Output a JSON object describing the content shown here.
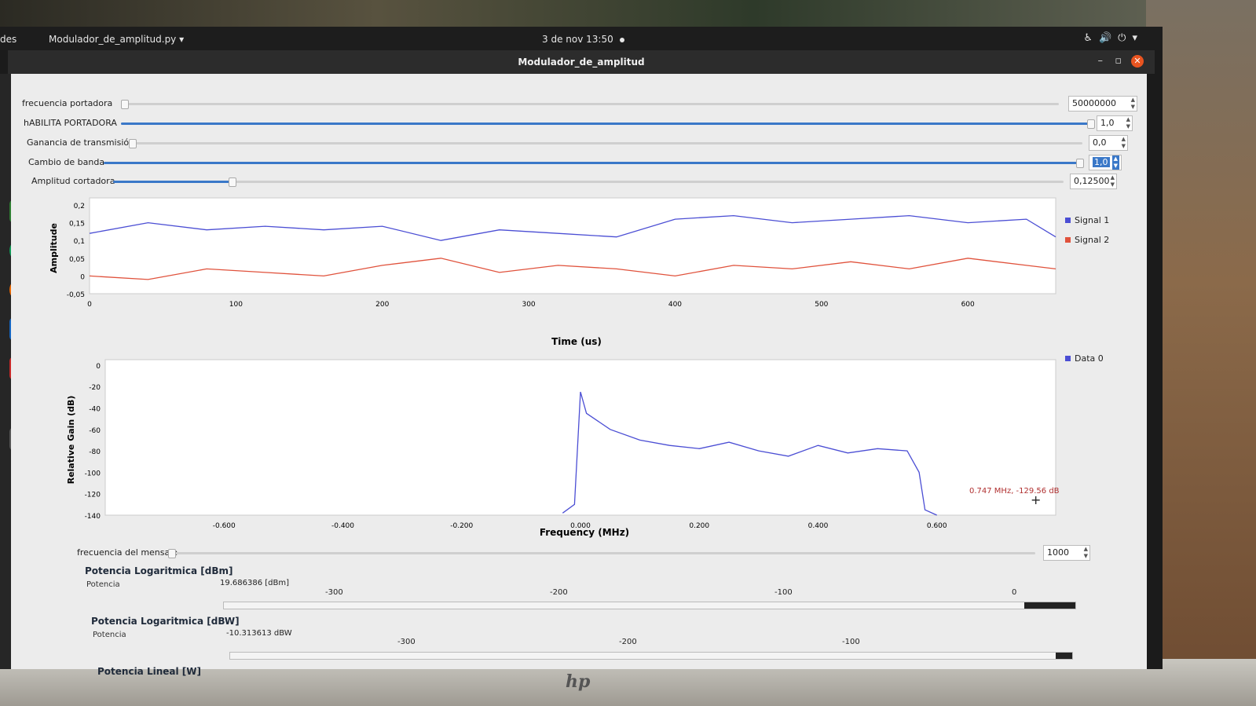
{
  "topbar": {
    "activities": "des",
    "app_menu": "Modulador_de_amplitud.py",
    "clock": "3 de nov  13:50"
  },
  "window": {
    "title": "Modulador_de_amplitud",
    "minimize": "–",
    "maximize": "▫",
    "close": "✕"
  },
  "controls": [
    {
      "label": "frecuencia portadora",
      "value": "50000000",
      "level": 0.0
    },
    {
      "label": "hABILITA PORTADORA",
      "value": "1,0",
      "level": 1.0
    },
    {
      "label": "Ganancia de transmisión",
      "value": "0,0",
      "level": 0.0
    },
    {
      "label": "Cambio de banda",
      "value": "1,0",
      "level": 1.0
    },
    {
      "label": "Amplitud cortadora",
      "value": "0,12500",
      "level": 0.125
    }
  ],
  "time_plot": {
    "legend": [
      "Signal 1",
      "Signal 2"
    ],
    "colors": [
      "#4b4ed4",
      "#e0523c"
    ],
    "ylabel": "Amplitude",
    "xlabel": "Time (us)",
    "yticks": [
      "0,2",
      "0,15",
      "0,1",
      "0,05",
      "0",
      "-0,05"
    ],
    "xticks": [
      "0",
      "100",
      "200",
      "300",
      "400",
      "500",
      "600"
    ]
  },
  "freq_plot": {
    "legend": [
      "Data 0"
    ],
    "color": "#4b4ed4",
    "ylabel": "Relative Gain (dB)",
    "xlabel": "Frequency (MHz)",
    "yticks": [
      "0",
      "-20",
      "-40",
      "-60",
      "-80",
      "-100",
      "-120",
      "-140"
    ],
    "xticks": [
      "-0.600",
      "-0.400",
      "-0.200",
      "0.000",
      "0.200",
      "0.400",
      "0.600"
    ],
    "marker": "0.747 MHz, -129.56 dB"
  },
  "message_freq": {
    "label": "frecuencia del mensaje",
    "value": "1000",
    "level": 0.0
  },
  "power": [
    {
      "title": "Potencia Logaritmica [dBm]",
      "label": "Potencia",
      "value": "19.686386 [dBm]",
      "scale": [
        "-300",
        "-200",
        "-100",
        "0"
      ],
      "level": 0.06
    },
    {
      "title": "Potencia Logaritmica [dBW]",
      "label": "Potencia",
      "value": "-10.313613 dBW",
      "scale": [
        "-300",
        "-200",
        "-100"
      ],
      "level": 0.02
    },
    {
      "title": "Potencia Lineal [W]"
    }
  ],
  "chart_data": [
    {
      "type": "line",
      "title": "",
      "xlabel": "Time (us)",
      "ylabel": "Amplitude",
      "xlim": [
        0,
        660
      ],
      "ylim": [
        -0.05,
        0.22
      ],
      "series": [
        {
          "name": "Signal 1",
          "x": [
            0,
            40,
            80,
            120,
            160,
            200,
            240,
            280,
            320,
            360,
            400,
            440,
            480,
            520,
            560,
            600,
            640,
            660
          ],
          "y": [
            0.12,
            0.15,
            0.13,
            0.14,
            0.13,
            0.14,
            0.1,
            0.13,
            0.12,
            0.11,
            0.16,
            0.17,
            0.15,
            0.16,
            0.17,
            0.15,
            0.16,
            0.11
          ]
        },
        {
          "name": "Signal 2",
          "x": [
            0,
            40,
            80,
            120,
            160,
            200,
            240,
            280,
            320,
            360,
            400,
            440,
            480,
            520,
            560,
            600,
            640,
            660
          ],
          "y": [
            0.0,
            -0.01,
            0.02,
            0.01,
            0.0,
            0.03,
            0.05,
            0.01,
            0.03,
            0.02,
            0.0,
            0.03,
            0.02,
            0.04,
            0.02,
            0.05,
            0.03,
            0.02
          ]
        }
      ],
      "legend": "right"
    },
    {
      "type": "line",
      "title": "",
      "xlabel": "Frequency (MHz)",
      "ylabel": "Relative Gain (dB)",
      "xlim": [
        -0.8,
        0.8
      ],
      "ylim": [
        -140,
        5
      ],
      "series": [
        {
          "name": "Data 0",
          "x": [
            -0.03,
            -0.01,
            0.0,
            0.01,
            0.05,
            0.1,
            0.15,
            0.2,
            0.25,
            0.3,
            0.35,
            0.4,
            0.45,
            0.5,
            0.55,
            0.57,
            0.58,
            0.6
          ],
          "y": [
            -138,
            -130,
            -25,
            -45,
            -60,
            -70,
            -75,
            -78,
            -72,
            -80,
            -85,
            -75,
            -82,
            -78,
            -80,
            -100,
            -135,
            -140
          ]
        }
      ],
      "legend": "right"
    }
  ]
}
